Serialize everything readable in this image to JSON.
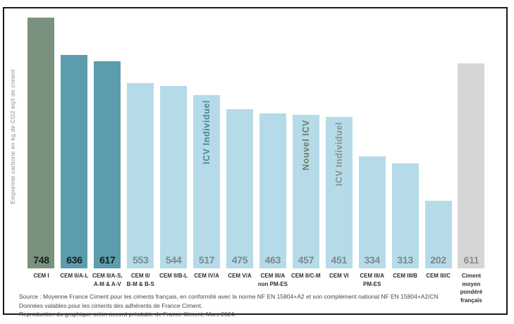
{
  "chart_data": {
    "type": "bar",
    "title": "",
    "xlabel": "",
    "ylabel": "Empreinte carbone en kg de CO2 eq/t de ciment",
    "ylim": [
      0,
      775
    ],
    "grid": false,
    "legend": "none",
    "categories": [
      "CEM I",
      "CEM II/A-L",
      "CEM II/A-S,\nA-M & A-V",
      "CEM II/\nB-M & B-S",
      "CEM II/B-L",
      "CEM IV/A",
      "CEM V/A",
      "CEM III/A\nnon PM-ES",
      "CEM II/C-M",
      "CEM VI",
      "CEM III/A\nPM-ES",
      "CEM III/B",
      "CEM III/C",
      "Ciment\nmoyen\npondéré\nfrançais"
    ],
    "values": [
      748,
      636,
      617,
      553,
      544,
      517,
      475,
      463,
      457,
      451,
      334,
      313,
      202,
      611
    ],
    "bar_colors": [
      "#7a917e",
      "#5b9dac",
      "#5b9dac",
      "#b5dbe9",
      "#b5dbe9",
      "#b5dbe9",
      "#b5dbe9",
      "#b5dbe9",
      "#b5dbe9",
      "#b5dbe9",
      "#b5dbe9",
      "#b5dbe9",
      "#b5dbe9",
      "#d6d6d6"
    ],
    "value_colors": [
      "#1d1d1d",
      "#1d1d1d",
      "#1d1d1d",
      "#7e888b",
      "#7e888b",
      "#7e888b",
      "#7e888b",
      "#7e888b",
      "#7e888b",
      "#7e888b",
      "#7e888b",
      "#7e888b",
      "#7e888b",
      "#8d8d8d"
    ],
    "annotations": [
      {
        "bar_index": 5,
        "text": "ICV Individuel",
        "color": "#4f8296"
      },
      {
        "bar_index": 8,
        "text": "Nouvel ICV",
        "color": "#6f7b67"
      },
      {
        "bar_index": 9,
        "text": "ICV Individuel",
        "color": "#8c9090"
      }
    ]
  },
  "footer": {
    "lines": [
      "Source : Moyenne France Ciment pour les ciments français, en conformité avec la norme NF EN 15804+A2 et son complément national NF EN 15804+A2/CN",
      "Données valables pour les ciments des adhérents de France Ciment.",
      "Reproduction du graphique selon accord préalable de France Ciment, Mars 2024."
    ]
  },
  "colors": {
    "border": "#1a1a1a",
    "sage_green": "#7a917e",
    "teal": "#5b9dac",
    "light_blue": "#b5dbe9",
    "gray_bar": "#d6d6d6",
    "ylabel_text": "#8b8b8b",
    "category_text": "#2e2e2e",
    "footer_text": "#474747"
  }
}
